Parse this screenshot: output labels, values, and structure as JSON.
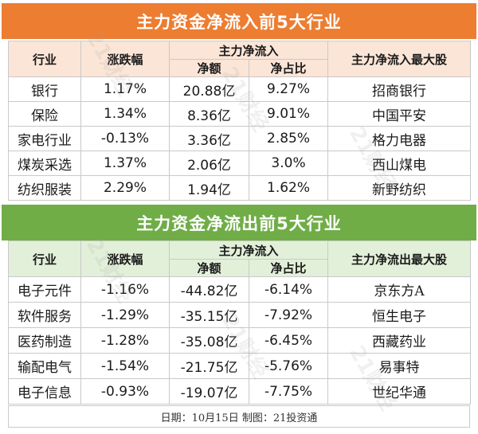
{
  "inflow": {
    "title": "主力资金净流入前5大行业",
    "headers": {
      "industry": "行业",
      "change": "涨跌幅",
      "net_group": "主力净流入",
      "net_amount": "净额",
      "net_ratio": "净占比",
      "top_stock": "主力净流入最大股"
    },
    "rows": [
      {
        "industry": "银行",
        "change": "1.17%",
        "net_amount": "20.88亿",
        "net_ratio": "9.27%",
        "top_stock": "招商银行"
      },
      {
        "industry": "保险",
        "change": "1.34%",
        "net_amount": "8.36亿",
        "net_ratio": "9.01%",
        "top_stock": "中国平安"
      },
      {
        "industry": "家电行业",
        "change": "-0.13%",
        "net_amount": "3.36亿",
        "net_ratio": "2.85%",
        "top_stock": "格力电器"
      },
      {
        "industry": "煤炭采选",
        "change": "1.37%",
        "net_amount": "2.06亿",
        "net_ratio": "3.0%",
        "top_stock": "西山煤电"
      },
      {
        "industry": "纺织服装",
        "change": "2.29%",
        "net_amount": "1.94亿",
        "net_ratio": "1.62%",
        "top_stock": "新野纺织"
      }
    ]
  },
  "outflow": {
    "title": "主力资金净流出前5大行业",
    "headers": {
      "industry": "行业",
      "change": "涨跌幅",
      "net_group": "主力净流入",
      "net_amount": "净额",
      "net_ratio": "净占比",
      "top_stock": "主力净流出最大股"
    },
    "rows": [
      {
        "industry": "电子元件",
        "change": "-1.16%",
        "net_amount": "-44.82亿",
        "net_ratio": "-6.14%",
        "top_stock": "京东方A"
      },
      {
        "industry": "软件服务",
        "change": "-1.29%",
        "net_amount": "-35.15亿",
        "net_ratio": "-7.92%",
        "top_stock": "恒生电子"
      },
      {
        "industry": "医药制造",
        "change": "-1.28%",
        "net_amount": "-35.08亿",
        "net_ratio": "-6.45%",
        "top_stock": "西藏药业"
      },
      {
        "industry": "输配电气",
        "change": "-1.54%",
        "net_amount": "-21.75亿",
        "net_ratio": "-5.76%",
        "top_stock": "易事特"
      },
      {
        "industry": "电子信息",
        "change": "-0.93%",
        "net_amount": "-19.07亿",
        "net_ratio": "-7.75%",
        "top_stock": "世纪华通"
      }
    ]
  },
  "footer": "日期：10月15日 制图：21投资通",
  "watermark": "21财经",
  "colors": {
    "inflow_banner": "#ed7d31",
    "inflow_header": "#fbe5d6",
    "outflow_banner": "#70ad47",
    "outflow_header": "#e2f0d9"
  }
}
